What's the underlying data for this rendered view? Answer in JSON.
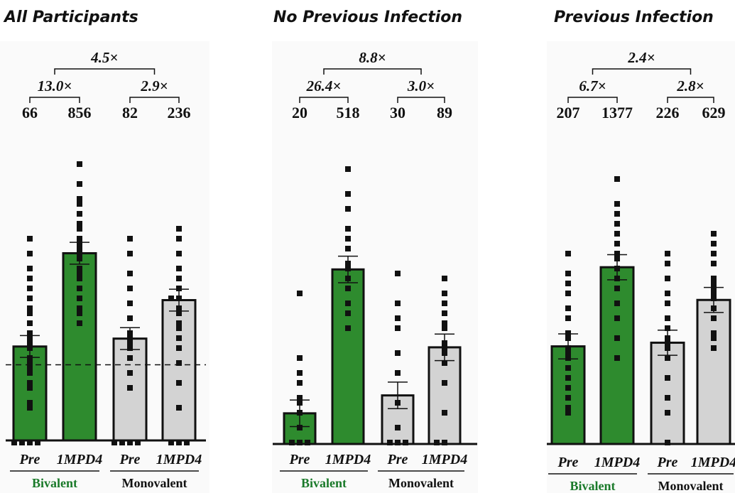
{
  "chart_data": [
    {
      "type": "bar",
      "title": "All Participants",
      "categories": [
        "Pre",
        "1MPD4",
        "Pre",
        "1MPD4"
      ],
      "groups": [
        {
          "label": "Bivalent",
          "color": "#2e8b2e",
          "label_color": "#1a7a2a"
        },
        {
          "label": "Monovalent",
          "color": "#d3d3d3",
          "label_color": "#111111"
        }
      ],
      "values": [
        66,
        856,
        82,
        236
      ],
      "value_labels": [
        "66",
        "856",
        "82",
        "236"
      ],
      "fold_changes": {
        "bivalent": "13.0×",
        "monovalent": "2.9×",
        "between": "4.5×"
      },
      "ylog": true,
      "ylim": [
        5,
        20000
      ],
      "dashed_line": 40,
      "points": [
        [
          5,
          5,
          5,
          5,
          12,
          15,
          20,
          25,
          30,
          35,
          40,
          50,
          60,
          70,
          80,
          100,
          130,
          160,
          200,
          260,
          330,
          420,
          550,
          800,
          1200
        ],
        [
          130,
          160,
          200,
          260,
          330,
          420,
          500,
          600,
          700,
          856,
          950,
          1100,
          1300,
          1600,
          2000,
          2600,
          3200,
          4000,
          6000,
          10000
        ],
        [
          5,
          5,
          5,
          5,
          20,
          30,
          45,
          60,
          75,
          82,
          100,
          150,
          220,
          330,
          500,
          800,
          1200
        ],
        [
          5,
          5,
          5,
          12,
          25,
          40,
          60,
          80,
          110,
          130,
          160,
          200,
          236,
          260,
          330,
          420,
          550,
          800,
          1200,
          1600
        ]
      ]
    },
    {
      "type": "bar",
      "title": "No Previous Infection",
      "categories": [
        "Pre",
        "1MPD4",
        "Pre",
        "1MPD4"
      ],
      "groups": [
        {
          "label": "Bivalent",
          "color": "#2e8b2e",
          "label_color": "#1a7a2a"
        },
        {
          "label": "Monovalent",
          "color": "#d3d3d3",
          "label_color": "#111111"
        }
      ],
      "values": [
        20,
        518,
        30,
        89
      ],
      "value_labels": [
        "20",
        "518",
        "30",
        "89"
      ],
      "fold_changes": {
        "bivalent": "26.4×",
        "monovalent": "3.0×",
        "between": "8.8×"
      },
      "ylog": true,
      "ylim": [
        10,
        10000
      ],
      "points": [
        [
          10,
          10,
          10,
          15,
          20,
          25,
          30,
          40,
          50,
          70,
          300
        ],
        [
          130,
          200,
          250,
          330,
          420,
          500,
          600,
          800,
          1000,
          1300,
          2000,
          3000,
          5000
        ],
        [
          10,
          10,
          10,
          15,
          25,
          50,
          80,
          130,
          180,
          250,
          450
        ],
        [
          10,
          10,
          20,
          40,
          60,
          80,
          89,
          100,
          130,
          160,
          200,
          250,
          300,
          400
        ]
      ]
    },
    {
      "type": "bar",
      "title": "Previous Infection",
      "categories": [
        "Pre",
        "1MPD4",
        "Pre",
        "1MPD4"
      ],
      "groups": [
        {
          "label": "Bivalent",
          "color": "#2e8b2e",
          "label_color": "#1a7a2a"
        },
        {
          "label": "Monovalent",
          "color": "#d3d3d3",
          "label_color": "#111111"
        }
      ],
      "values": [
        207,
        1377,
        226,
        629
      ],
      "value_labels": [
        "207",
        "1377",
        "226",
        "629"
      ],
      "fold_changes": {
        "bivalent": "6.7×",
        "monovalent": "2.8×",
        "between": "2.4×"
      },
      "ylog": true,
      "ylim": [
        20,
        30000
      ],
      "points": [
        [
          40,
          50,
          60,
          80,
          100,
          120,
          150,
          180,
          207,
          250,
          300,
          400,
          500,
          700,
          900,
          1200,
          2000
        ],
        [
          150,
          250,
          400,
          600,
          800,
          1000,
          1377,
          1600,
          2000,
          2500,
          3200,
          4000,
          5000,
          6000,
          12000
        ],
        [
          20,
          40,
          60,
          100,
          150,
          200,
          226,
          260,
          320,
          400,
          550,
          700,
          1000,
          1500,
          2000
        ],
        [
          200,
          250,
          300,
          400,
          500,
          629,
          700,
          800,
          900,
          1100,
          1500,
          2000,
          2500,
          3000
        ]
      ]
    }
  ]
}
